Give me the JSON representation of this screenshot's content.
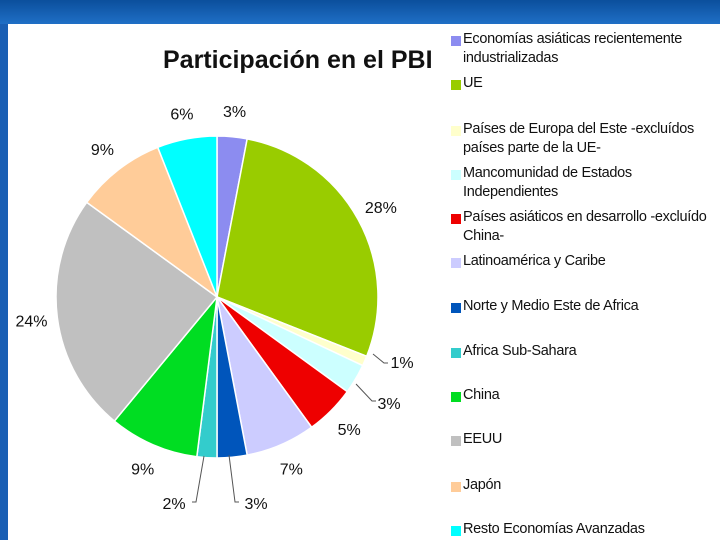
{
  "chart_data": {
    "type": "pie",
    "title": "Participación en el PBI",
    "slices": [
      {
        "name": "Economías asiáticas recientemente industrializadas",
        "value": 3,
        "label": "3%",
        "color": "#8c8cf0"
      },
      {
        "name": "UE",
        "value": 28,
        "label": "28%",
        "color": "#99cc00"
      },
      {
        "name": "Países de Europa del Este -excluídos países parte de la UE-",
        "value": 1,
        "label": "1%",
        "color": "#ffffcc"
      },
      {
        "name": "Mancomunidad de Estados Independientes",
        "value": 3,
        "label": "3%",
        "color": "#ccffff"
      },
      {
        "name": "Países asiáticos en desarrollo -excluído China-",
        "value": 5,
        "label": "5%",
        "color": "#ee0000"
      },
      {
        "name": "Latinoamérica y Caribe",
        "value": 7,
        "label": "7%",
        "color": "#ccccff"
      },
      {
        "name": "Norte y Medio Este de Africa",
        "value": 3,
        "label": "3%",
        "color": "#0055bb"
      },
      {
        "name": "Africa Sub-Sahara",
        "value": 2,
        "label": "2%",
        "color": "#33cccc"
      },
      {
        "name": "China",
        "value": 9,
        "label": "9%",
        "color": "#00dd22"
      },
      {
        "name": "EEUU",
        "value": 24,
        "label": "24%",
        "color": "#c0c0c0"
      },
      {
        "name": "Japón",
        "value": 9,
        "label": "9%",
        "color": "#ffcc99"
      },
      {
        "name": "Resto Economías Avanzadas",
        "value": 6,
        "label": "6%",
        "color": "#00ffff"
      }
    ]
  }
}
